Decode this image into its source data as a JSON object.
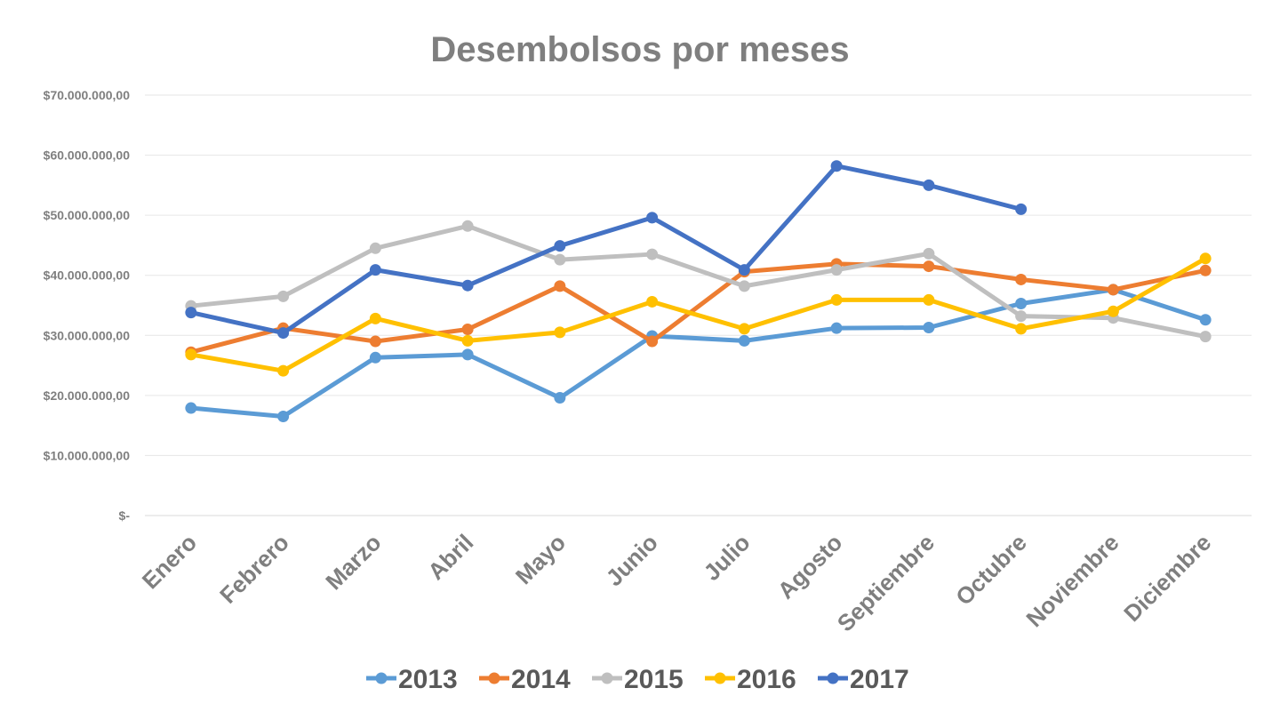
{
  "chart_data": {
    "type": "line",
    "title": "Desembolsos por meses",
    "xlabel": "",
    "ylabel": "",
    "ylim": [
      0,
      70000000
    ],
    "y_ticks": [
      0,
      10000000,
      20000000,
      30000000,
      40000000,
      50000000,
      60000000,
      70000000
    ],
    "y_tick_labels": [
      "$-",
      "$10.000.000,00",
      "$20.000.000,00",
      "$30.000.000,00",
      "$40.000.000,00",
      "$50.000.000,00",
      "$60.000.000,00",
      "$70.000.000,00"
    ],
    "grid": true,
    "legend_position": "bottom",
    "categories": [
      "Enero",
      "Febrero",
      "Marzo",
      "Abril",
      "Mayo",
      "Junio",
      "Julio",
      "Agosto",
      "Septiembre",
      "Octubre",
      "Noviembre",
      "Diciembre"
    ],
    "series": [
      {
        "name": "2013",
        "color": "#5b9bd5",
        "values": [
          17900000,
          16500000,
          26300000,
          26800000,
          19600000,
          29900000,
          29100000,
          31200000,
          31300000,
          35300000,
          37600000,
          32600000
        ]
      },
      {
        "name": "2014",
        "color": "#ed7d31",
        "values": [
          27200000,
          31200000,
          29000000,
          31000000,
          38200000,
          29000000,
          40600000,
          41900000,
          41500000,
          39300000,
          37600000,
          40800000
        ]
      },
      {
        "name": "2015",
        "color": "#bfbfbf",
        "values": [
          34900000,
          36500000,
          44500000,
          48200000,
          42600000,
          43500000,
          38200000,
          40900000,
          43600000,
          33200000,
          32900000,
          29800000
        ]
      },
      {
        "name": "2016",
        "color": "#ffc000",
        "values": [
          26800000,
          24100000,
          32800000,
          29100000,
          30500000,
          35600000,
          31100000,
          35900000,
          35900000,
          31100000,
          34000000,
          42800000
        ]
      },
      {
        "name": "2017",
        "color": "#4472c4",
        "values": [
          33800000,
          30400000,
          40900000,
          38300000,
          44900000,
          49600000,
          40900000,
          58200000,
          55000000,
          51000000,
          null,
          null
        ]
      }
    ]
  }
}
